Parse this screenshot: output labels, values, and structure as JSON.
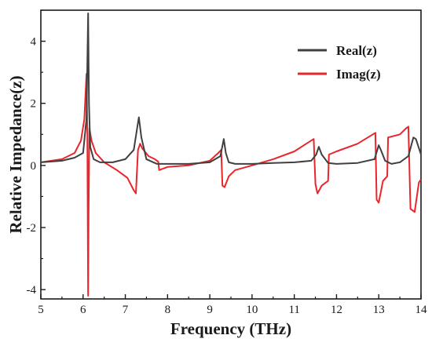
{
  "chart_data": {
    "type": "line",
    "title": "",
    "xlabel": "Frequency (THz)",
    "ylabel": "Relative Impedance(z)",
    "xlim": [
      5,
      14
    ],
    "ylim": [
      -4.3,
      5
    ],
    "xticks": [
      5,
      6,
      7,
      8,
      9,
      10,
      11,
      12,
      13,
      14
    ],
    "yticks": [
      -4,
      -2,
      0,
      2,
      4
    ],
    "legend_position": "top-right",
    "grid": false,
    "series": [
      {
        "name": "Real(z)",
        "color": "#404040",
        "x": [
          5.0,
          5.5,
          5.8,
          6.0,
          6.08,
          6.12,
          6.14,
          6.17,
          6.25,
          6.4,
          6.7,
          7.0,
          7.2,
          7.28,
          7.32,
          7.38,
          7.5,
          7.75,
          8.0,
          8.5,
          9.0,
          9.25,
          9.33,
          9.38,
          9.45,
          9.6,
          10.0,
          10.5,
          11.0,
          11.4,
          11.52,
          11.58,
          11.65,
          11.8,
          12.0,
          12.5,
          12.9,
          13.0,
          13.05,
          13.15,
          13.3,
          13.5,
          13.7,
          13.82,
          13.88,
          14.0
        ],
        "y": [
          0.1,
          0.15,
          0.25,
          0.4,
          1.5,
          4.9,
          2.0,
          0.6,
          0.2,
          0.1,
          0.1,
          0.2,
          0.5,
          1.2,
          1.55,
          0.9,
          0.2,
          0.05,
          0.05,
          0.05,
          0.1,
          0.3,
          0.85,
          0.4,
          0.1,
          0.05,
          0.05,
          0.08,
          0.1,
          0.15,
          0.35,
          0.6,
          0.35,
          0.08,
          0.05,
          0.08,
          0.2,
          0.65,
          0.5,
          0.15,
          0.05,
          0.1,
          0.3,
          0.9,
          0.85,
          0.35
        ]
      },
      {
        "name": "Imag(z)",
        "color": "#e8262b",
        "x": [
          5.0,
          5.5,
          5.8,
          5.95,
          6.03,
          6.08,
          6.1,
          6.12,
          6.13,
          6.15,
          6.2,
          6.3,
          6.5,
          6.8,
          7.05,
          7.2,
          7.25,
          7.3,
          7.35,
          7.4,
          7.55,
          7.7,
          7.78,
          7.8,
          8.0,
          8.5,
          9.0,
          9.2,
          9.27,
          9.3,
          9.35,
          9.45,
          9.6,
          10.0,
          10.5,
          11.0,
          11.4,
          11.46,
          11.5,
          11.55,
          11.65,
          11.8,
          11.82,
          12.0,
          12.5,
          12.92,
          12.95,
          13.0,
          13.1,
          13.2,
          13.22,
          13.5,
          13.65,
          13.7,
          13.75,
          13.85,
          13.95,
          14.0
        ],
        "y": [
          0.1,
          0.2,
          0.4,
          0.8,
          1.5,
          2.95,
          1.0,
          -4.2,
          -1.5,
          1.2,
          0.8,
          0.4,
          0.1,
          -0.15,
          -0.4,
          -0.8,
          -0.9,
          0.5,
          0.7,
          0.55,
          0.3,
          0.2,
          0.12,
          -0.15,
          -0.05,
          0.0,
          0.15,
          0.4,
          0.5,
          -0.65,
          -0.7,
          -0.35,
          -0.15,
          0.0,
          0.2,
          0.45,
          0.8,
          0.85,
          -0.6,
          -0.9,
          -0.65,
          -0.5,
          0.35,
          0.45,
          0.7,
          1.05,
          -1.1,
          -1.2,
          -0.5,
          -0.35,
          0.9,
          1.0,
          1.2,
          1.25,
          -1.4,
          -1.5,
          -0.55,
          -0.45
        ]
      }
    ]
  }
}
